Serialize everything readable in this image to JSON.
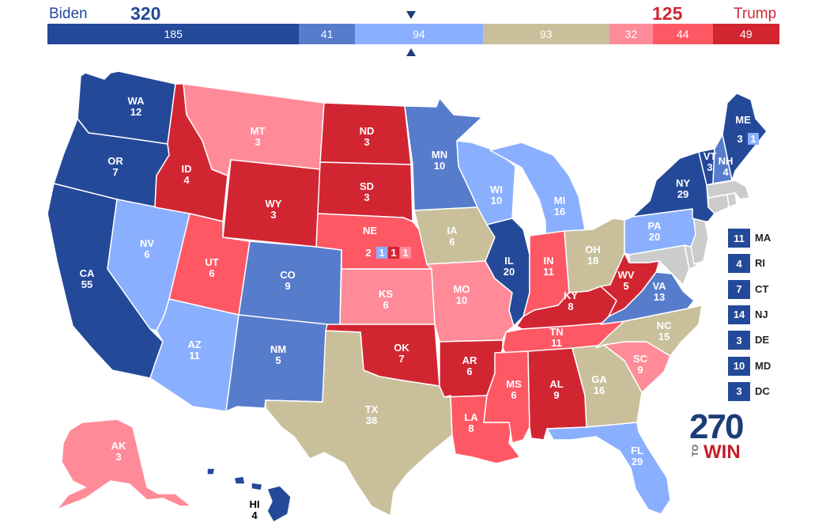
{
  "header": {
    "dem_name": "Biden",
    "dem_total": "320",
    "rep_name": "Trump",
    "rep_total": "125",
    "dem_color": "#244999",
    "rep_color": "#D22532",
    "segments": [
      {
        "value": 185,
        "label": "185",
        "color": "#244999",
        "category": "safe-dem"
      },
      {
        "value": 41,
        "label": "41",
        "color": "#577CCC",
        "category": "likely-dem"
      },
      {
        "value": 94,
        "label": "94",
        "color": "#8AAFFF",
        "category": "lean-dem"
      },
      {
        "value": 93,
        "label": "93",
        "color": "#C9C09B",
        "category": "tossup"
      },
      {
        "value": 32,
        "label": "32",
        "color": "#FF8B98",
        "category": "lean-rep"
      },
      {
        "value": 44,
        "label": "44",
        "color": "#FF5865",
        "category": "likely-rep"
      },
      {
        "value": 49,
        "label": "49",
        "color": "#D22532",
        "category": "safe-rep"
      }
    ]
  },
  "states": [
    {
      "abbr": "WA",
      "ev": "12",
      "color": "#244999"
    },
    {
      "abbr": "OR",
      "ev": "7",
      "color": "#244999"
    },
    {
      "abbr": "CA",
      "ev": "55",
      "color": "#244999"
    },
    {
      "abbr": "NV",
      "ev": "6",
      "color": "#8AAFFF"
    },
    {
      "abbr": "ID",
      "ev": "4",
      "color": "#D22532"
    },
    {
      "abbr": "MT",
      "ev": "3",
      "color": "#FF8B98"
    },
    {
      "abbr": "WY",
      "ev": "3",
      "color": "#D22532"
    },
    {
      "abbr": "UT",
      "ev": "6",
      "color": "#FF5865"
    },
    {
      "abbr": "AZ",
      "ev": "11",
      "color": "#8AAFFF"
    },
    {
      "abbr": "CO",
      "ev": "9",
      "color": "#577CCC"
    },
    {
      "abbr": "NM",
      "ev": "5",
      "color": "#577CCC"
    },
    {
      "abbr": "ND",
      "ev": "3",
      "color": "#D22532"
    },
    {
      "abbr": "SD",
      "ev": "3",
      "color": "#D22532"
    },
    {
      "abbr": "NE",
      "ev": "2",
      "color": "#FF5865"
    },
    {
      "abbr": "KS",
      "ev": "6",
      "color": "#FF8B98"
    },
    {
      "abbr": "OK",
      "ev": "7",
      "color": "#D22532"
    },
    {
      "abbr": "TX",
      "ev": "38",
      "color": "#C9C09B"
    },
    {
      "abbr": "MN",
      "ev": "10",
      "color": "#577CCC"
    },
    {
      "abbr": "IA",
      "ev": "6",
      "color": "#C9C09B"
    },
    {
      "abbr": "MO",
      "ev": "10",
      "color": "#FF8B98"
    },
    {
      "abbr": "AR",
      "ev": "6",
      "color": "#D22532"
    },
    {
      "abbr": "LA",
      "ev": "8",
      "color": "#FF5865"
    },
    {
      "abbr": "WI",
      "ev": "10",
      "color": "#8AAFFF"
    },
    {
      "abbr": "IL",
      "ev": "20",
      "color": "#244999"
    },
    {
      "abbr": "MI",
      "ev": "16",
      "color": "#8AAFFF"
    },
    {
      "abbr": "IN",
      "ev": "11",
      "color": "#FF5865"
    },
    {
      "abbr": "OH",
      "ev": "18",
      "color": "#C9C09B"
    },
    {
      "abbr": "KY",
      "ev": "8",
      "color": "#D22532"
    },
    {
      "abbr": "TN",
      "ev": "11",
      "color": "#FF5865"
    },
    {
      "abbr": "MS",
      "ev": "6",
      "color": "#FF5865"
    },
    {
      "abbr": "AL",
      "ev": "9",
      "color": "#D22532"
    },
    {
      "abbr": "GA",
      "ev": "16",
      "color": "#C9C09B"
    },
    {
      "abbr": "FL",
      "ev": "29",
      "color": "#8AAFFF"
    },
    {
      "abbr": "SC",
      "ev": "9",
      "color": "#FF8B98"
    },
    {
      "abbr": "NC",
      "ev": "15",
      "color": "#C9C09B"
    },
    {
      "abbr": "VA",
      "ev": "13",
      "color": "#577CCC"
    },
    {
      "abbr": "WV",
      "ev": "5",
      "color": "#D22532"
    },
    {
      "abbr": "PA",
      "ev": "20",
      "color": "#8AAFFF"
    },
    {
      "abbr": "NY",
      "ev": "29",
      "color": "#244999"
    },
    {
      "abbr": "VT",
      "ev": "3",
      "color": "#244999"
    },
    {
      "abbr": "NH",
      "ev": "4",
      "color": "#577CCC"
    },
    {
      "abbr": "ME",
      "ev": "3",
      "color": "#244999"
    },
    {
      "abbr": "AK",
      "ev": "3",
      "color": "#FF8B98"
    },
    {
      "abbr": "HI",
      "ev": "4",
      "color": "#244999"
    }
  ],
  "ne_districts": [
    {
      "label": "1",
      "color": "#8AAFFF"
    },
    {
      "label": "1",
      "color": "#D22532"
    },
    {
      "label": "1",
      "color": "#FF8B98"
    }
  ],
  "me_district": {
    "label": "1",
    "color": "#8AAFFF"
  },
  "small_states": [
    {
      "abbr": "MA",
      "ev": "11"
    },
    {
      "abbr": "RI",
      "ev": "4"
    },
    {
      "abbr": "CT",
      "ev": "7"
    },
    {
      "abbr": "NJ",
      "ev": "14"
    },
    {
      "abbr": "DE",
      "ev": "3"
    },
    {
      "abbr": "MD",
      "ev": "10"
    },
    {
      "abbr": "DC",
      "ev": "3"
    }
  ],
  "logo": {
    "number": "270",
    "to": "TO",
    "win": "WIN"
  }
}
